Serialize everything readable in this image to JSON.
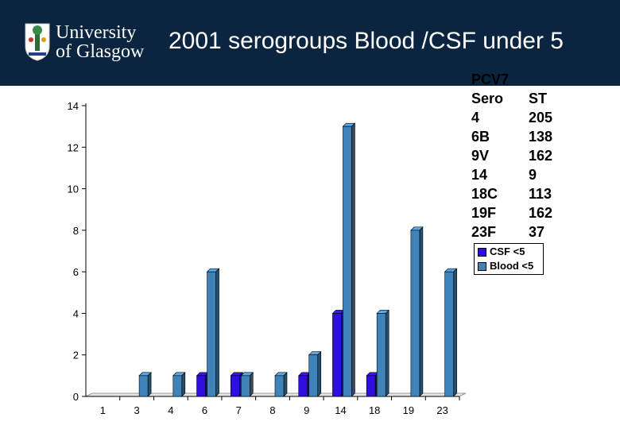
{
  "header": {
    "logo_line1": "University",
    "logo_line2": "of Glasgow",
    "title": "2001 serogroups Blood /CSF under 5"
  },
  "colors": {
    "header_bg": "#0b2540",
    "csf": "#2d0fe0",
    "blood": "#3f83b8"
  },
  "sero_table": {
    "title": "PCV7",
    "header": [
      "Sero",
      "ST"
    ],
    "rows": [
      [
        "4",
        "205"
      ],
      [
        "6B",
        "138"
      ],
      [
        "9V",
        "162"
      ],
      [
        "14",
        "9"
      ],
      [
        "18C",
        "113"
      ],
      [
        "19F",
        "162"
      ],
      [
        "23F",
        "37"
      ]
    ]
  },
  "chart_data": {
    "type": "bar",
    "style": "3d-clustered",
    "categories": [
      "1",
      "3",
      "4",
      "6",
      "7",
      "8",
      "9",
      "14",
      "18",
      "19",
      "23"
    ],
    "series": [
      {
        "name": "CSF <5",
        "color": "#2d0fe0",
        "values": [
          0,
          0,
          0,
          1,
          1,
          0,
          1,
          4,
          1,
          0,
          0
        ]
      },
      {
        "name": "Blood <5",
        "color": "#3f83b8",
        "values": [
          0,
          1,
          1,
          6,
          1,
          1,
          2,
          13,
          4,
          8,
          6
        ]
      }
    ],
    "yticks": [
      "0",
      "2",
      "4",
      "6",
      "8",
      "10",
      "12",
      "14"
    ],
    "ylim": [
      0,
      14
    ],
    "grid": false,
    "legend": "right"
  }
}
